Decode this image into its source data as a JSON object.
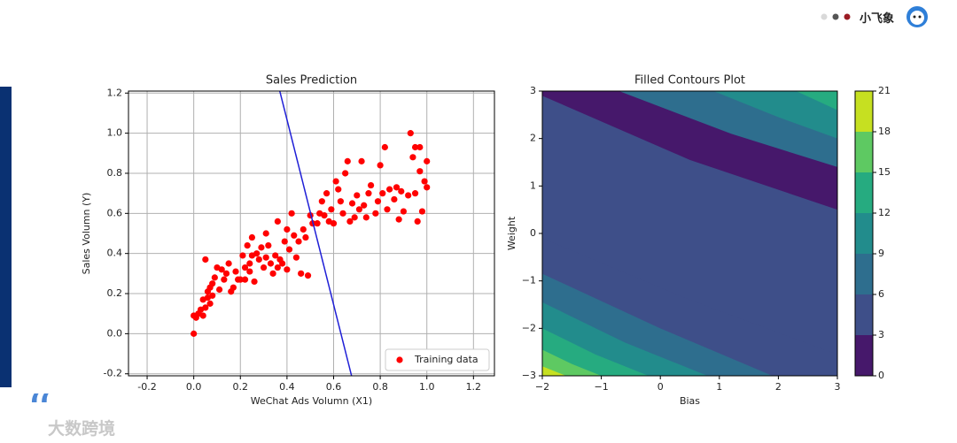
{
  "header": {
    "brand": "小飞象"
  },
  "watermark": "大数跨境",
  "chart_data": [
    {
      "type": "scatter",
      "title": "Sales Prediction",
      "x_label": "WeChat Ads Volumn (X1)",
      "y_label": "Sales Volumn (Y)",
      "xlim": [
        -0.28,
        1.29
      ],
      "ylim": [
        -0.21,
        1.21
      ],
      "grid": true,
      "legend": "lower right",
      "xticks": [
        {
          "value": -0.2,
          "label": "-0.2"
        },
        {
          "value": 0,
          "label": "0.0"
        },
        0.2,
        0.4,
        0.6,
        0.8,
        {
          "value": 1,
          "label": "1.0"
        },
        1.2
      ],
      "yticks": [
        {
          "value": -0.2,
          "label": "-0.2"
        },
        {
          "value": 0,
          "label": "0.0"
        },
        0.2,
        0.4,
        0.6,
        0.8,
        {
          "value": 1,
          "label": "1.0"
        },
        1.2
      ],
      "series": [
        {
          "name": "Training data",
          "color": "#ff0000",
          "x": [
            0.0,
            0.0,
            0.01,
            0.02,
            0.03,
            0.04,
            0.04,
            0.05,
            0.05,
            0.06,
            0.06,
            0.07,
            0.07,
            0.08,
            0.08,
            0.09,
            0.1,
            0.11,
            0.12,
            0.13,
            0.14,
            0.15,
            0.16,
            0.17,
            0.18,
            0.19,
            0.2,
            0.21,
            0.22,
            0.22,
            0.23,
            0.24,
            0.24,
            0.25,
            0.25,
            0.26,
            0.27,
            0.28,
            0.29,
            0.3,
            0.31,
            0.31,
            0.32,
            0.33,
            0.34,
            0.35,
            0.36,
            0.36,
            0.37,
            0.38,
            0.39,
            0.4,
            0.4,
            0.41,
            0.42,
            0.43,
            0.44,
            0.45,
            0.46,
            0.47,
            0.48,
            0.49,
            0.5,
            0.51,
            0.53,
            0.54,
            0.55,
            0.56,
            0.57,
            0.58,
            0.59,
            0.6,
            0.61,
            0.62,
            0.63,
            0.64,
            0.65,
            0.66,
            0.67,
            0.68,
            0.69,
            0.7,
            0.71,
            0.72,
            0.73,
            0.74,
            0.75,
            0.76,
            0.78,
            0.79,
            0.8,
            0.81,
            0.82,
            0.83,
            0.84,
            0.86,
            0.87,
            0.88,
            0.89,
            0.9,
            0.92,
            0.93,
            0.94,
            0.95,
            0.96,
            0.97,
            0.98,
            0.99,
            1.0,
            1.0,
            0.97,
            0.95
          ],
          "values": [
            0.0,
            0.09,
            0.08,
            0.1,
            0.12,
            0.09,
            0.17,
            0.37,
            0.13,
            0.18,
            0.21,
            0.15,
            0.23,
            0.25,
            0.19,
            0.28,
            0.33,
            0.22,
            0.32,
            0.27,
            0.3,
            0.35,
            0.21,
            0.23,
            0.31,
            0.27,
            0.27,
            0.39,
            0.27,
            0.33,
            0.44,
            0.35,
            0.31,
            0.48,
            0.39,
            0.26,
            0.4,
            0.37,
            0.43,
            0.33,
            0.5,
            0.38,
            0.44,
            0.35,
            0.3,
            0.39,
            0.56,
            0.33,
            0.37,
            0.35,
            0.46,
            0.52,
            0.32,
            0.42,
            0.6,
            0.49,
            0.38,
            0.46,
            0.3,
            0.52,
            0.48,
            0.29,
            0.59,
            0.55,
            0.55,
            0.6,
            0.66,
            0.59,
            0.7,
            0.56,
            0.62,
            0.55,
            0.76,
            0.72,
            0.66,
            0.6,
            0.8,
            0.86,
            0.56,
            0.65,
            0.58,
            0.69,
            0.62,
            0.86,
            0.64,
            0.58,
            0.7,
            0.74,
            0.6,
            0.66,
            0.84,
            0.7,
            0.93,
            0.62,
            0.72,
            0.67,
            0.73,
            0.57,
            0.71,
            0.61,
            0.69,
            1.0,
            0.88,
            0.7,
            0.56,
            0.93,
            0.61,
            0.76,
            0.73,
            0.86,
            0.81,
            0.93
          ]
        }
      ],
      "lines": [
        {
          "color": "#1f1fd6",
          "x": [
            0.369,
            0.677
          ],
          "values": [
            1.21,
            -0.21
          ]
        }
      ]
    },
    {
      "type": "contourf",
      "title": "Filled Contours Plot",
      "x_label": "Bias",
      "y_label": "Weight",
      "xlim": [
        -2,
        3
      ],
      "ylim": [
        -3,
        3
      ],
      "xticks": [
        {
          "value": -2,
          "label": "−2"
        },
        {
          "value": -1,
          "label": "−1"
        },
        0,
        1,
        2,
        3
      ],
      "yticks": [
        {
          "value": -3,
          "label": "−3"
        },
        {
          "value": -2,
          "label": "−2"
        },
        {
          "value": -1,
          "label": "−1"
        },
        0,
        1,
        2,
        3
      ],
      "levels": [
        0,
        3,
        6,
        9,
        12,
        15,
        18,
        21
      ],
      "colors": [
        "#46186b",
        "#3e4f89",
        "#2e6e8e",
        "#228c8c",
        "#26ab80",
        "#5ec962",
        "#c6e021"
      ],
      "contours": [
        {
          "level": 3,
          "x": [
            -2,
            0.5,
            3
          ],
          "y": [
            2.9,
            1.55,
            0.5
          ]
        },
        {
          "level": 6,
          "x": [
            -0.7,
            1.2,
            3
          ],
          "y": [
            3,
            2.1,
            1.4
          ]
        },
        {
          "level": 9,
          "x": [
            0.9,
            2.0,
            3
          ],
          "y": [
            3,
            2.45,
            2.0
          ]
        },
        {
          "level": 12,
          "x": [
            2.3,
            2.65,
            3
          ],
          "y": [
            3,
            2.8,
            2.6
          ]
        },
        {
          "level": 3,
          "x": [
            -2,
            0.5,
            3
          ],
          "y": [
            -0.1,
            -1.4,
            -2.55
          ]
        },
        {
          "level": 6,
          "x": [
            -2,
            0,
            1.9
          ],
          "y": [
            -0.85,
            -2.0,
            -3
          ]
        },
        {
          "level": 9,
          "x": [
            -2,
            -0.6,
            0.8
          ],
          "y": [
            -1.45,
            -2.3,
            -3
          ]
        },
        {
          "level": 12,
          "x": [
            -2,
            -1.1,
            -0.2
          ],
          "y": [
            -2.0,
            -2.55,
            -3
          ]
        },
        {
          "level": 15,
          "x": [
            -2,
            -1.5,
            -1.0
          ],
          "y": [
            -2.45,
            -2.75,
            -3
          ]
        },
        {
          "level": 18,
          "x": [
            -2,
            -1.8,
            -1.6
          ],
          "y": [
            -2.8,
            -2.9,
            -3
          ]
        }
      ],
      "cticks": [
        0,
        3,
        6,
        9,
        12,
        15,
        18,
        21
      ]
    }
  ]
}
